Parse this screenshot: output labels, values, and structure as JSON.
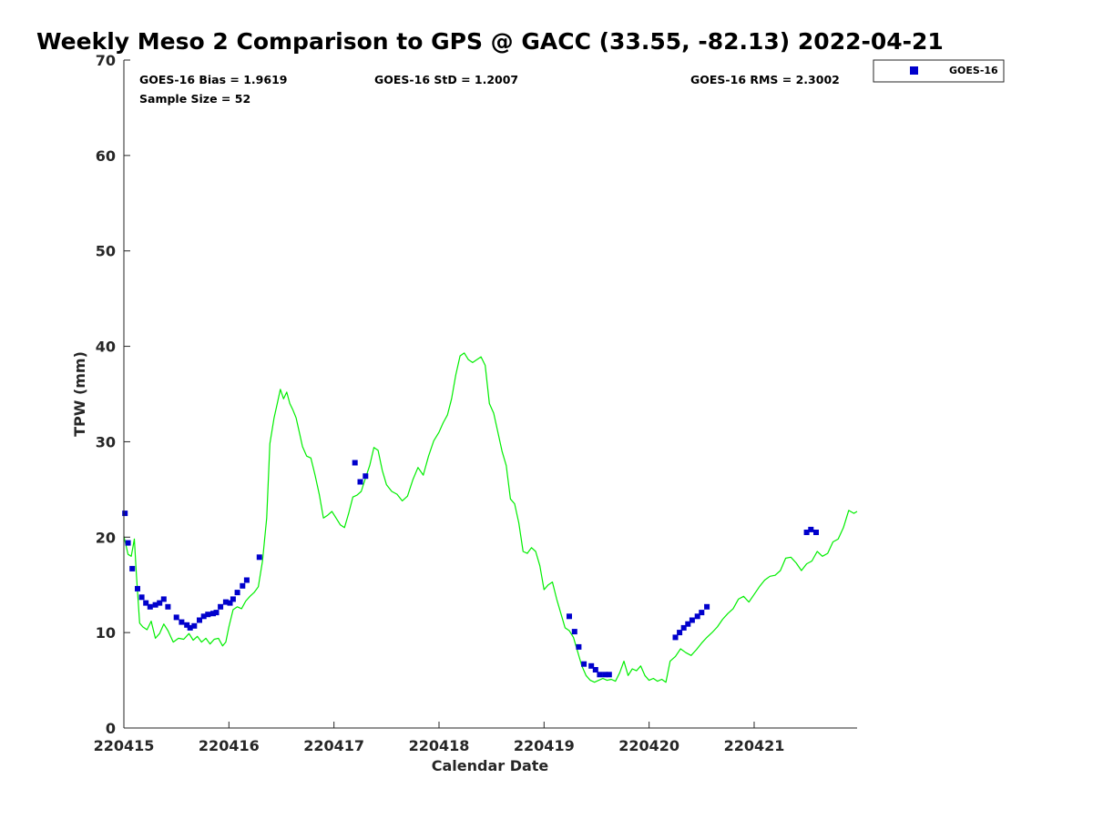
{
  "chart_data": {
    "type": "scatter",
    "title": "Weekly Meso 2 Comparison to GPS @ GACC (33.55, -82.13) 2022-04-21",
    "xlabel": "Calendar Date",
    "ylabel": "TPW (mm)",
    "xlim": [
      0,
      6.98
    ],
    "ylim": [
      0,
      70
    ],
    "x_unit": "days since 2022-04-15 00:00 UTC",
    "x_ticks": [
      0,
      1,
      2,
      3,
      4,
      5,
      6
    ],
    "x_tick_labels": [
      "220415",
      "220416",
      "220417",
      "220418",
      "220419",
      "220420",
      "220421"
    ],
    "y_ticks": [
      0,
      10,
      20,
      30,
      40,
      50,
      60,
      70
    ],
    "y_tick_labels": [
      "0",
      "10",
      "20",
      "30",
      "40",
      "50",
      "60",
      "70"
    ],
    "grid": false,
    "legend_position": "top-right, outside",
    "stats": {
      "bias": "GOES-16 Bias = 1.9619",
      "std": "GOES-16 StD = 1.2007",
      "rms": "GOES-16 RMS = 2.3002",
      "sample": "Sample Size = 52"
    },
    "series": [
      {
        "name": "GOES-16",
        "kind": "scatter",
        "color": "#0000cc",
        "x": [
          0.01,
          0.04,
          0.08,
          0.13,
          0.17,
          0.21,
          0.25,
          0.3,
          0.34,
          0.38,
          0.42,
          0.5,
          0.55,
          0.6,
          0.63,
          0.67,
          0.72,
          0.76,
          0.8,
          0.85,
          0.88,
          0.92,
          0.97,
          1.01,
          1.04,
          1.08,
          1.13,
          1.17,
          1.29,
          2.2,
          2.25,
          2.3,
          4.24,
          4.29,
          4.33,
          4.38,
          4.45,
          4.49,
          4.53,
          4.58,
          4.62,
          5.25,
          5.29,
          5.33,
          5.37,
          5.41,
          5.46,
          5.5,
          5.55,
          6.5,
          6.54,
          6.59
        ],
        "y": [
          22.5,
          19.4,
          16.7,
          14.6,
          13.7,
          13.1,
          12.7,
          12.9,
          13.1,
          13.5,
          12.7,
          11.6,
          11.1,
          10.8,
          10.5,
          10.7,
          11.3,
          11.7,
          11.9,
          12.0,
          12.1,
          12.7,
          13.2,
          13.1,
          13.5,
          14.2,
          14.9,
          15.5,
          17.9,
          27.8,
          25.8,
          26.4,
          11.7,
          10.1,
          8.5,
          6.7,
          6.5,
          6.1,
          5.6,
          5.6,
          5.6,
          9.5,
          10.0,
          10.5,
          10.9,
          11.3,
          11.7,
          12.1,
          12.7,
          20.5,
          20.8,
          20.5
        ]
      },
      {
        "name": "",
        "kind": "line",
        "color": "#00ee00",
        "x": [
          0,
          0.04,
          0.07,
          0.1,
          0.12,
          0.15,
          0.18,
          0.22,
          0.26,
          0.3,
          0.34,
          0.38,
          0.42,
          0.47,
          0.52,
          0.57,
          0.62,
          0.66,
          0.7,
          0.74,
          0.78,
          0.82,
          0.86,
          0.9,
          0.94,
          0.97,
          1.0,
          1.04,
          1.08,
          1.12,
          1.16,
          1.2,
          1.24,
          1.28,
          1.32,
          1.36,
          1.39,
          1.43,
          1.46,
          1.49,
          1.52,
          1.55,
          1.58,
          1.61,
          1.64,
          1.67,
          1.7,
          1.74,
          1.78,
          1.82,
          1.86,
          1.9,
          1.94,
          1.98,
          2.02,
          2.06,
          2.1,
          2.14,
          2.18,
          2.22,
          2.26,
          2.3,
          2.34,
          2.38,
          2.42,
          2.46,
          2.5,
          2.55,
          2.6,
          2.65,
          2.7,
          2.75,
          2.8,
          2.85,
          2.9,
          2.95,
          3.0,
          3.04,
          3.08,
          3.12,
          3.16,
          3.2,
          3.24,
          3.28,
          3.32,
          3.36,
          3.4,
          3.44,
          3.48,
          3.52,
          3.56,
          3.6,
          3.64,
          3.68,
          3.72,
          3.76,
          3.8,
          3.84,
          3.88,
          3.92,
          3.96,
          4.0,
          4.04,
          4.08,
          4.12,
          4.16,
          4.2,
          4.24,
          4.28,
          4.32,
          4.36,
          4.4,
          4.44,
          4.48,
          4.52,
          4.56,
          4.6,
          4.64,
          4.68,
          4.72,
          4.76,
          4.8,
          4.84,
          4.88,
          4.92,
          4.96,
          5.0,
          5.04,
          5.08,
          5.12,
          5.16,
          5.2,
          5.25,
          5.3,
          5.35,
          5.4,
          5.45,
          5.5,
          5.55,
          5.6,
          5.65,
          5.7,
          5.75,
          5.8,
          5.85,
          5.9,
          5.95,
          6.0,
          6.05,
          6.1,
          6.15,
          6.2,
          6.25,
          6.3,
          6.35,
          6.4,
          6.45,
          6.5,
          6.55,
          6.6,
          6.65,
          6.7,
          6.75,
          6.8,
          6.85,
          6.9,
          6.95,
          6.98
        ],
        "y": [
          20.1,
          18.2,
          18.0,
          19.8,
          16.0,
          11.0,
          10.6,
          10.3,
          11.2,
          9.4,
          9.9,
          10.9,
          10.2,
          9.0,
          9.4,
          9.3,
          9.9,
          9.2,
          9.6,
          9.0,
          9.4,
          8.8,
          9.3,
          9.4,
          8.6,
          9.0,
          10.6,
          12.4,
          12.7,
          12.5,
          13.3,
          13.8,
          14.2,
          14.8,
          17.5,
          22.0,
          29.8,
          32.5,
          34.0,
          35.5,
          34.5,
          35.2,
          34.0,
          33.3,
          32.5,
          31.0,
          29.5,
          28.5,
          28.3,
          26.5,
          24.5,
          22.0,
          22.3,
          22.7,
          22.0,
          21.3,
          21.0,
          22.5,
          24.2,
          24.4,
          24.8,
          26.2,
          27.5,
          29.4,
          29.1,
          27.0,
          25.5,
          24.8,
          24.5,
          23.8,
          24.3,
          26.0,
          27.3,
          26.5,
          28.5,
          30.1,
          31.0,
          32.0,
          32.8,
          34.5,
          37.0,
          39.0,
          39.3,
          38.6,
          38.3,
          38.6,
          38.9,
          38.0,
          34.0,
          33.0,
          31.0,
          29.0,
          27.5,
          24.0,
          23.5,
          21.5,
          18.5,
          18.3,
          18.9,
          18.5,
          17.0,
          14.5,
          15.0,
          15.3,
          13.5,
          12.0,
          10.5,
          10.2,
          9.5,
          8.0,
          6.5,
          5.5,
          5.0,
          4.8,
          5.0,
          5.2,
          5.0,
          5.1,
          4.9,
          5.8,
          7.0,
          5.5,
          6.2,
          6.0,
          6.5,
          5.5,
          5.0,
          5.2,
          4.9,
          5.1,
          4.8,
          7.0,
          7.5,
          8.3,
          7.9,
          7.6,
          8.2,
          8.9,
          9.5,
          10.0,
          10.6,
          11.4,
          12.0,
          12.5,
          13.5,
          13.8,
          13.2,
          14.0,
          14.8,
          15.5,
          15.9,
          16.0,
          16.5,
          17.8,
          17.9,
          17.3,
          16.5,
          17.2,
          17.5,
          18.5,
          18.0,
          18.3,
          19.5,
          19.8,
          21.0,
          22.8,
          22.5,
          22.7
        ]
      }
    ]
  }
}
